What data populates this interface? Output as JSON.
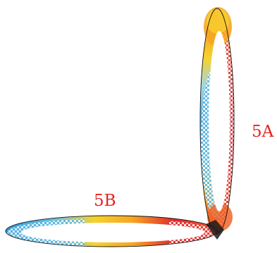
{
  "labels": {
    "ring_a": "5A",
    "ring_b": "5B"
  },
  "colors": {
    "label": "#e8221c",
    "outline": "#111111",
    "hot": [
      "#e3262b",
      "#f0662a",
      "#f6a623",
      "#f7d12e"
    ],
    "cold": [
      "#2a9bd6",
      "#66c0e6",
      "#a8dcef"
    ],
    "stripe_blue": "#5bb6e3",
    "stripe_red": "#e43a3e"
  }
}
